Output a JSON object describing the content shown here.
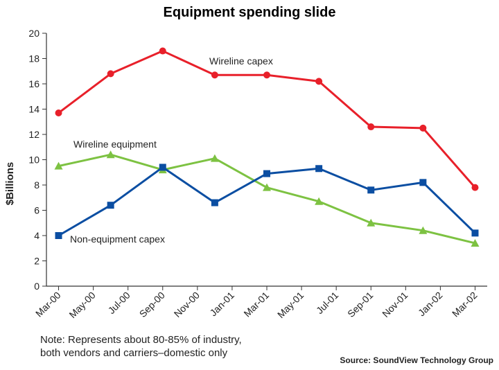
{
  "chart_data": {
    "type": "line",
    "title": "Equipment spending slide",
    "ylabel": "$Billions",
    "xlabel": "",
    "ylim": [
      0,
      20
    ],
    "y_ticks": [
      0,
      2,
      4,
      6,
      8,
      10,
      12,
      14,
      16,
      18,
      20
    ],
    "x_tick_labels": [
      "Mar-00",
      "May-00",
      "Jul-00",
      "Sep-00",
      "Nov-00",
      "Jan-01",
      "Mar-01",
      "May-01",
      "Jul-01",
      "Sep-01",
      "Nov-01",
      "Jan-02",
      "Mar-02"
    ],
    "grid": false,
    "series": [
      {
        "name": "Wireline capex",
        "color": "#e8202a",
        "marker": "circle",
        "points": [
          {
            "x": "Mar-00",
            "y": 13.7
          },
          {
            "x": "Jun-00",
            "y": 16.8
          },
          {
            "x": "Sep-00",
            "y": 18.6
          },
          {
            "x": "Dec-00",
            "y": 16.7
          },
          {
            "x": "Mar-01",
            "y": 16.7
          },
          {
            "x": "Jun-01",
            "y": 16.2
          },
          {
            "x": "Sep-01",
            "y": 12.6
          },
          {
            "x": "Dec-01",
            "y": 12.5
          },
          {
            "x": "Mar-02",
            "y": 7.8
          }
        ]
      },
      {
        "name": "Wireline equipment",
        "color": "#7dc242",
        "marker": "triangle",
        "points": [
          {
            "x": "Mar-00",
            "y": 9.5
          },
          {
            "x": "Jun-00",
            "y": 10.4
          },
          {
            "x": "Sep-00",
            "y": 9.2
          },
          {
            "x": "Dec-00",
            "y": 10.1
          },
          {
            "x": "Mar-01",
            "y": 7.8
          },
          {
            "x": "Jun-01",
            "y": 6.7
          },
          {
            "x": "Sep-01",
            "y": 5.0
          },
          {
            "x": "Dec-01",
            "y": 4.4
          },
          {
            "x": "Mar-02",
            "y": 3.4
          }
        ]
      },
      {
        "name": "Non-equipment capex",
        "color": "#0b4ea2",
        "marker": "square",
        "points": [
          {
            "x": "Mar-00",
            "y": 4.0
          },
          {
            "x": "Jun-00",
            "y": 6.4
          },
          {
            "x": "Sep-00",
            "y": 9.4
          },
          {
            "x": "Dec-00",
            "y": 6.6
          },
          {
            "x": "Mar-01",
            "y": 8.9
          },
          {
            "x": "Jun-01",
            "y": 9.3
          },
          {
            "x": "Sep-01",
            "y": 7.6
          },
          {
            "x": "Dec-01",
            "y": 8.2
          },
          {
            "x": "Mar-02",
            "y": 4.2
          }
        ]
      }
    ]
  },
  "note": {
    "line1": "Note: Represents about 80-85% of industry,",
    "line2": "both vendors and carriers–domestic only"
  },
  "source": "Source: SoundView Technology Group"
}
